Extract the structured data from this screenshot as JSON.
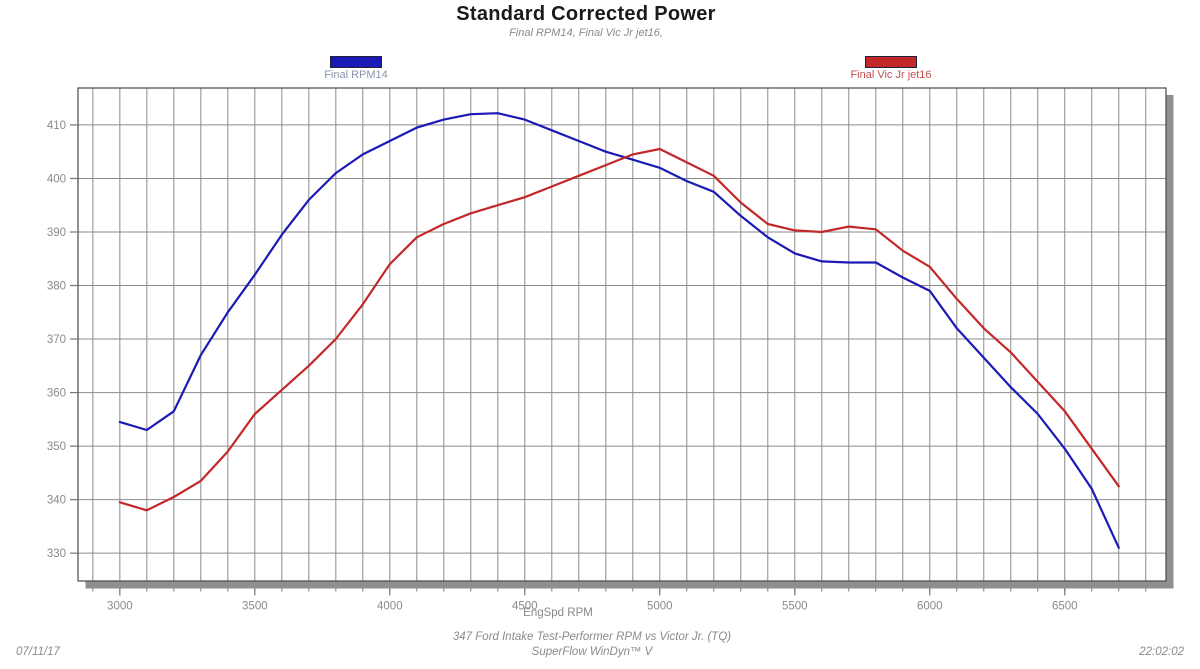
{
  "header": {
    "title": "Standard Corrected Power",
    "subtitle": "Final RPM14, Final Vic Jr jet16,"
  },
  "legend": {
    "position": "top",
    "items": [
      {
        "id": "final-rpm14",
        "label": "Final RPM14",
        "swatch_color": "#1c1ab5",
        "label_color": "#8a93a8"
      },
      {
        "id": "final-vic-jr-jet16",
        "label": "Final Vic Jr jet16",
        "swatch_color": "#c32828",
        "label_color": "#c05050"
      }
    ]
  },
  "chart_data": {
    "type": "line",
    "title": "Standard Corrected Power",
    "subtitle": "Final RPM14, Final Vic Jr jet16,",
    "xlabel": "EngSpd RPM",
    "ylabel": "",
    "grid": true,
    "legend_position": "top",
    "xlim": [
      2845,
      6875
    ],
    "ylim": [
      324.8,
      416.9
    ],
    "x_major_ticks": [
      3000,
      3500,
      4000,
      4500,
      5000,
      5500,
      6000,
      6500
    ],
    "x_minor_step": 100,
    "y_major_ticks": [
      330,
      340,
      350,
      360,
      370,
      380,
      390,
      400,
      410
    ],
    "y_minor_step": 2,
    "x": [
      3000,
      3100,
      3200,
      3300,
      3400,
      3500,
      3600,
      3700,
      3800,
      3900,
      4000,
      4100,
      4200,
      4300,
      4400,
      4500,
      4600,
      4700,
      4800,
      4900,
      5000,
      5100,
      5200,
      5300,
      5400,
      5500,
      5600,
      5700,
      5800,
      5900,
      6000,
      6100,
      6200,
      6300,
      6400,
      6500,
      6600,
      6700
    ],
    "series": [
      {
        "name": "Final RPM14",
        "color": "#1c1ab5",
        "values": [
          354.5,
          353,
          356.5,
          367,
          375,
          382,
          389.5,
          396,
          401,
          404.5,
          407,
          409.5,
          411,
          412,
          412.2,
          411,
          409,
          407,
          405,
          403.5,
          402,
          399.5,
          397.5,
          393,
          389,
          386,
          384.5,
          384.3,
          384.3,
          381.5,
          379,
          372,
          366.5,
          361,
          356,
          349.5,
          342,
          331
        ]
      },
      {
        "name": "Final Vic Jr jet16",
        "color": "#c32828",
        "values": [
          339.5,
          338,
          340.5,
          343.5,
          349,
          356,
          360.5,
          365,
          370,
          376.5,
          384,
          389,
          391.5,
          393.5,
          395,
          396.5,
          398.5,
          400.5,
          402.5,
          404.5,
          405.5,
          403,
          400.5,
          395.5,
          391.5,
          390.3,
          390,
          391,
          390.5,
          386.5,
          383.5,
          377.5,
          372,
          367.5,
          362,
          356.5,
          349.5,
          342.5
        ]
      }
    ]
  },
  "footer": {
    "description": "347 Ford Intake Test-Performer RPM vs Victor Jr. (TQ)",
    "software": "SuperFlow WinDyn™ V",
    "date": "07/11/17",
    "time": "22:02:02"
  },
  "colors": {
    "background": "#ffffff",
    "grid": "#8b8b8b",
    "frame": "#4a4a4a",
    "shadow": "#8f8f8f",
    "tick": "#777777",
    "tick_text": "#8a8a8a"
  }
}
